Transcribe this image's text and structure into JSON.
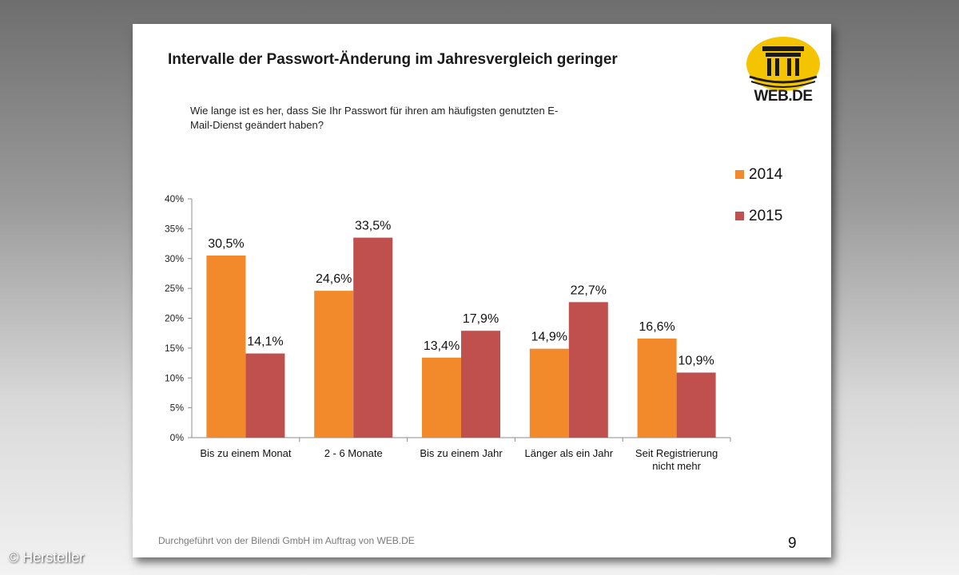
{
  "title": "Intervalle der Passwort-Änderung im Jahresvergleich geringer",
  "question_lines": [
    "Wie lange ist es her, dass Sie Ihr Passwort für ihren am häufigsten genutzten E-",
    "Mail-Dienst geändert haben?"
  ],
  "logo_text": "WEB.DE",
  "footer": "Durchgeführt von der Bilendi GmbH im Auftrag von WEB.DE",
  "page_number": "9",
  "credit": "© Hersteller",
  "colors": {
    "series_2014": "#f28a2b",
    "series_2015": "#c0504d",
    "logo_yellow": "#f5c400"
  },
  "chart_data": {
    "type": "bar",
    "title": "",
    "xlabel": "",
    "ylabel": "",
    "ylim": [
      0,
      40
    ],
    "yticks": [
      "0%",
      "5%",
      "10%",
      "15%",
      "20%",
      "25%",
      "30%",
      "35%",
      "40%"
    ],
    "categories": [
      [
        "Bis zu einem Monat"
      ],
      [
        "2 - 6 Monate"
      ],
      [
        "Bis zu einem Jahr"
      ],
      [
        "Länger als ein Jahr"
      ],
      [
        "Seit Registrierung",
        "nicht mehr"
      ]
    ],
    "series": [
      {
        "name": "2014",
        "values": [
          30.5,
          24.6,
          13.4,
          14.9,
          16.6
        ],
        "labels": [
          "30,5%",
          "24,6%",
          "13,4%",
          "14,9%",
          "16,6%"
        ]
      },
      {
        "name": "2015",
        "values": [
          14.1,
          33.5,
          17.9,
          22.7,
          10.9
        ],
        "labels": [
          "14,1%",
          "33,5%",
          "17,9%",
          "22,7%",
          "10,9%"
        ]
      }
    ],
    "legend_position": "right"
  }
}
